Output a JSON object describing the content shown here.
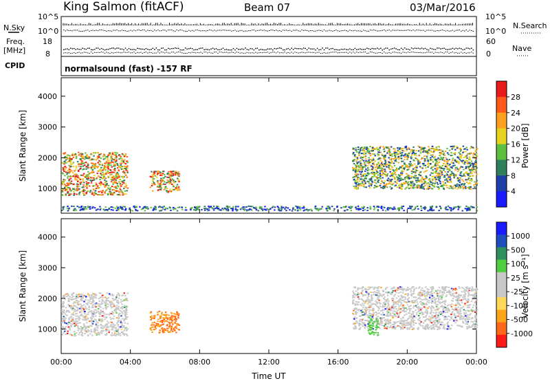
{
  "header": {
    "station": "King Salmon (fitACF)",
    "beam": "Beam 07",
    "date": "03/Mar/2016"
  },
  "strip_labels": {
    "nsky": "N.Sky",
    "nsearch": "N.Search",
    "freq_l1": "Freq.",
    "freq_l2": "[MHz]",
    "nave": "Nave",
    "cpid": "CPID",
    "sky_tick_top": "10^5",
    "sky_tick_bot": "10^0",
    "search_tick_top": "10^5",
    "search_tick_bot": "10^0",
    "freq_tick_top": "18",
    "freq_tick_bot": "8",
    "nave_tick_top": "60",
    "nave_tick_bot": "0"
  },
  "cpid_text": "normalsound (fast) -157 RF",
  "colors": {
    "power_scale": [
      "#1a1aff",
      "#1f3fa8",
      "#2f7f5a",
      "#5fbf3f",
      "#e6d21f",
      "#ff9f1f",
      "#ff5a1a",
      "#e81a1a"
    ],
    "velocity_scale": [
      "#ff1a1a",
      "#ff6a1a",
      "#ffa51a",
      "#ffd85a",
      "#c8c8c8",
      "#c8c8c8",
      "#4fcf3f",
      "#2f8f5f",
      "#1f4fbf",
      "#1a1aff"
    ]
  },
  "chart_data": [
    {
      "type": "heatmap",
      "panel": "power",
      "xlabel": "",
      "ylabel": "Slant Range [km]",
      "xlim": [
        0,
        24
      ],
      "ylim": [
        200,
        4600
      ],
      "yticks": [
        "1000",
        "2000",
        "3000",
        "4000"
      ],
      "colorbar": {
        "label": "Power [dB]",
        "ticks": [
          "4",
          "8",
          "12",
          "16",
          "20",
          "24",
          "28"
        ]
      },
      "scatter_regions": [
        {
          "t": [
            0.0,
            3.8
          ],
          "range": [
            800,
            2200
          ],
          "value": "high"
        },
        {
          "t": [
            5.1,
            6.8
          ],
          "range": [
            900,
            1600
          ],
          "value": "high"
        },
        {
          "t": [
            16.8,
            24.0
          ],
          "range": [
            1000,
            2400
          ],
          "value": "medium"
        },
        {
          "t": [
            0.0,
            24.0
          ],
          "range": [
            300,
            450
          ],
          "value": "low"
        }
      ]
    },
    {
      "type": "heatmap",
      "panel": "velocity",
      "xlabel": "Time UT",
      "ylabel": "Slant Range [km]",
      "xlim": [
        0,
        24
      ],
      "ylim": [
        200,
        4600
      ],
      "xticks": [
        "00:00",
        "04:00",
        "08:00",
        "12:00",
        "16:00",
        "20:00",
        "00:00"
      ],
      "yticks": [
        "1000",
        "2000",
        "3000",
        "4000"
      ],
      "colorbar": {
        "label": "Velocity [m s⁻¹]",
        "ticks": [
          "1000",
          "500",
          "100",
          "25",
          "-25",
          "-100",
          "-500",
          "-1000"
        ]
      },
      "scatter_regions": [
        {
          "t": [
            0.0,
            3.8
          ],
          "range": [
            800,
            2200
          ],
          "value": "near zero"
        },
        {
          "t": [
            5.1,
            6.8
          ],
          "range": [
            900,
            1600
          ],
          "value": "-100 to -500"
        },
        {
          "t": [
            16.8,
            24.0
          ],
          "range": [
            1000,
            2400
          ],
          "value": "near zero"
        },
        {
          "t": [
            17.7,
            18.3
          ],
          "range": [
            800,
            1400
          ],
          "value": "100"
        }
      ]
    }
  ]
}
